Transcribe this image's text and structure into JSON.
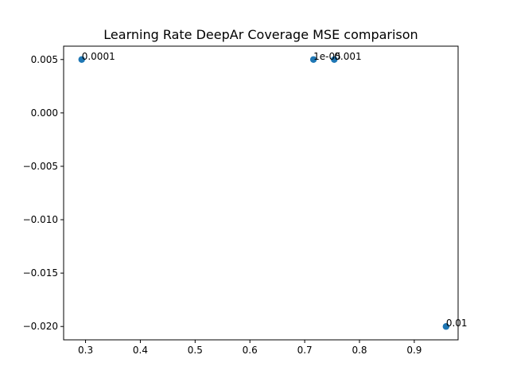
{
  "chart_data": {
    "type": "scatter",
    "title": "Learning Rate DeepAr Coverage MSE comparison",
    "xlabel": "",
    "ylabel": "",
    "xlim": [
      0.26,
      0.98
    ],
    "ylim": [
      -0.02125,
      0.00625
    ],
    "x_ticks": [
      0.3,
      0.4,
      0.5,
      0.6,
      0.7,
      0.8,
      0.9
    ],
    "x_tick_labels": [
      "0.3",
      "0.4",
      "0.5",
      "0.6",
      "0.7",
      "0.8",
      "0.9"
    ],
    "y_ticks": [
      0.005,
      0.0,
      -0.005,
      -0.01,
      -0.015,
      -0.02
    ],
    "y_tick_labels": [
      "0.005",
      "0.000",
      "−0.005",
      "−0.010",
      "−0.015",
      "−0.020"
    ],
    "grid": false,
    "marker_color": "#1f77b4",
    "points": [
      {
        "x": 0.293,
        "y": 0.005,
        "label": "0.0001"
      },
      {
        "x": 0.716,
        "y": 0.005,
        "label": "1e-05"
      },
      {
        "x": 0.754,
        "y": 0.005,
        "label": "0.001"
      },
      {
        "x": 0.958,
        "y": -0.02,
        "label": "0.01"
      }
    ]
  }
}
